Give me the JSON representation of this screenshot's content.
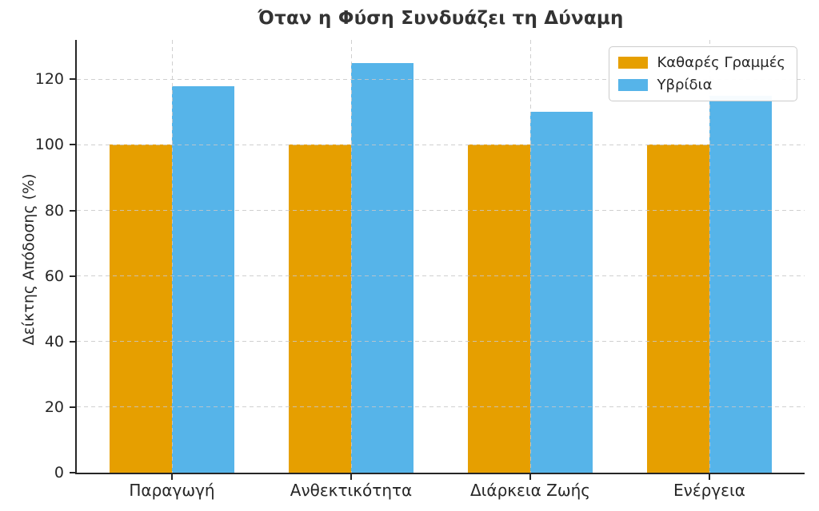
{
  "chart_data": {
    "type": "bar",
    "title": "Όταν η Φύση Συνδυάζει τη Δύναμη",
    "ylabel": "Δείκτης Απόδοσης (%)",
    "xlabel": "",
    "categories": [
      "Παραγωγή",
      "Ανθεκτικότητα",
      "Διάρκεια Ζωής",
      "Ενέργεια"
    ],
    "series": [
      {
        "name": "Καθαρές Γραμμές",
        "color": "#E69F00",
        "values": [
          100,
          100,
          100,
          100
        ]
      },
      {
        "name": "Υβρίδια",
        "color": "#56B4E9",
        "values": [
          118,
          125,
          110,
          115
        ]
      }
    ],
    "ylim": [
      0,
      132
    ],
    "yticks": [
      0,
      20,
      40,
      60,
      80,
      100,
      120
    ],
    "grid": {
      "horizontal": true,
      "vertical": true,
      "style": "dashed",
      "color": "#c7c7c7"
    },
    "legend_position": "upper-right"
  },
  "style": {
    "background": "#ffffff",
    "spine_color": "#262626",
    "tick_text_color": "#262626",
    "title_color": "#333333"
  }
}
